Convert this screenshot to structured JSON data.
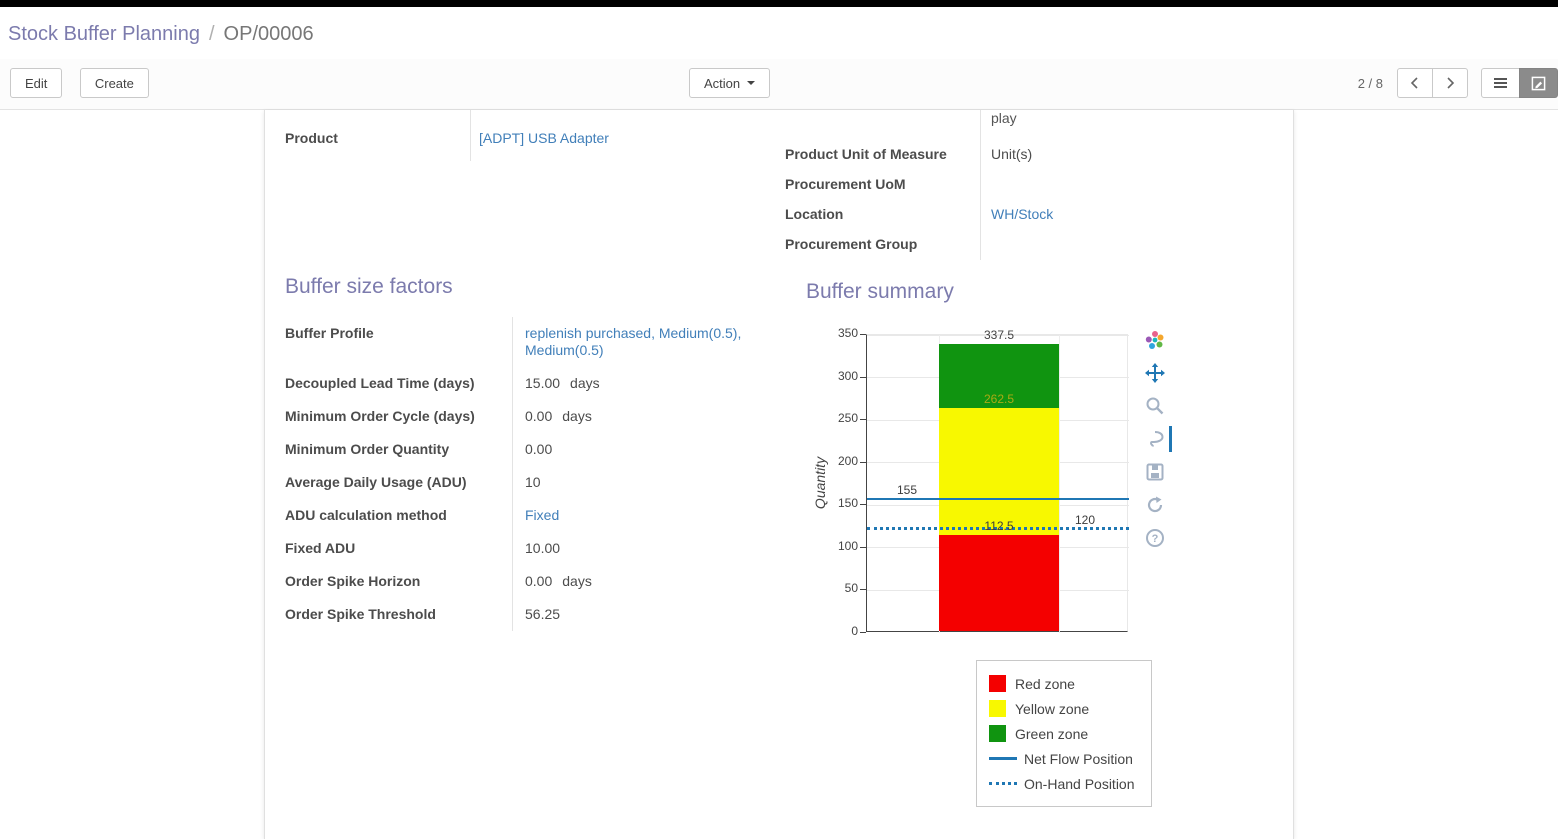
{
  "breadcrumb": {
    "parent": "Stock Buffer Planning",
    "separator": "/",
    "current": "OP/00006"
  },
  "control_panel": {
    "edit": "Edit",
    "create": "Create",
    "action": "Action",
    "pager": "2 / 8"
  },
  "form": {
    "clipped_top_text": "play",
    "product": {
      "label": "Product",
      "value": "[ADPT] USB Adapter"
    },
    "right_fields": [
      {
        "label": "Product Unit of Measure",
        "value": "Unit(s)"
      },
      {
        "label": "Procurement UoM",
        "value": ""
      },
      {
        "label": "Location",
        "value": "WH/Stock"
      },
      {
        "label": "Procurement Group",
        "value": ""
      }
    ],
    "factors_title": "Buffer size factors",
    "factor_fields": [
      {
        "label": "Buffer Profile",
        "value": "replenish purchased, Medium(0.5), Medium(0.5)"
      },
      {
        "label": "Decoupled Lead Time (days)",
        "value": "15.00",
        "suffix": "days"
      },
      {
        "label": "Minimum Order Cycle (days)",
        "value": "0.00",
        "suffix": "days"
      },
      {
        "label": "Minimum Order Quantity",
        "value": "0.00"
      },
      {
        "label": "Average Daily Usage (ADU)",
        "value": "10"
      },
      {
        "label": "ADU calculation method",
        "value": "Fixed"
      },
      {
        "label": "Fixed ADU",
        "value": "10.00"
      },
      {
        "label": "Order Spike Horizon",
        "value": "0.00",
        "suffix": "days"
      },
      {
        "label": "Order Spike Threshold",
        "value": "56.25"
      }
    ],
    "summary_title": "Buffer summary"
  },
  "icons": {
    "question_glyph": "?"
  },
  "chart_data": {
    "type": "bar",
    "title": "",
    "ylabel": "Quantity",
    "ylim": [
      0,
      350
    ],
    "yticks": [
      0,
      50,
      100,
      150,
      200,
      250,
      300,
      350
    ],
    "grid": true,
    "legend_position": "bottom-right",
    "zones": [
      {
        "name": "Red zone",
        "from": 0,
        "to": 112.5,
        "color": "#f40000"
      },
      {
        "name": "Yellow zone",
        "from": 112.5,
        "to": 262.5,
        "color": "#f8f800"
      },
      {
        "name": "Green zone",
        "from": 262.5,
        "to": 337.5,
        "color": "#109410"
      }
    ],
    "lines": [
      {
        "name": "Net Flow Position",
        "value": 155,
        "style": "solid",
        "color": "#1f77b4"
      },
      {
        "name": "On-Hand Position",
        "value": 120,
        "style": "dotted",
        "color": "#1f77b4"
      }
    ],
    "annotations": [
      {
        "text": "337.5",
        "value": 337.5,
        "pos": "center",
        "color": "#444444"
      },
      {
        "text": "262.5",
        "value": 262.5,
        "pos": "center",
        "color": "#aaaa14"
      },
      {
        "text": "155",
        "value": 155,
        "pos": "left",
        "color": "#3c3c3c"
      },
      {
        "text": "112.5",
        "value": 112.5,
        "pos": "center",
        "color": "#3c3c3c"
      },
      {
        "text": "120",
        "value": 120,
        "pos": "right",
        "color": "#3c3c3c"
      }
    ]
  }
}
